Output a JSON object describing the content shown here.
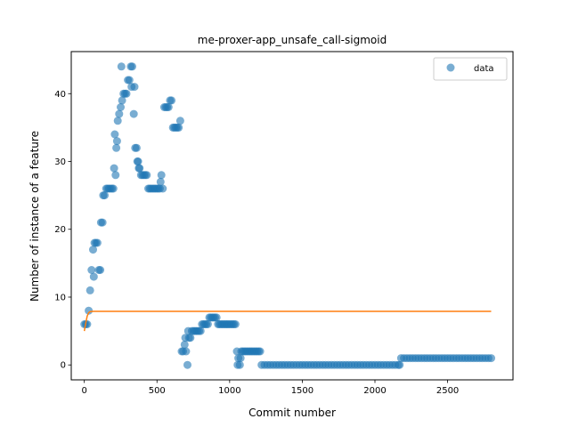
{
  "chart_data": {
    "type": "scatter",
    "title": "me-proxer-app_unsafe_call-sigmoid",
    "xlabel": "Commit number",
    "ylabel": "Number of instance of a feature",
    "xlim": [
      -90,
      2950
    ],
    "ylim": [
      -2.2,
      46.2
    ],
    "x_ticks": [
      0,
      500,
      1000,
      1500,
      2000,
      2500
    ],
    "y_ticks": [
      0,
      10,
      20,
      30,
      40
    ],
    "legend": {
      "position": "top-right",
      "entries": [
        "data"
      ]
    },
    "colors": {
      "data": "#1f77b4",
      "fit": "#ff7f0e"
    },
    "series": [
      {
        "name": "data",
        "kind": "scatter",
        "points": [
          [
            0,
            6
          ],
          [
            10,
            6
          ],
          [
            20,
            6
          ],
          [
            30,
            8
          ],
          [
            40,
            11
          ],
          [
            50,
            14
          ],
          [
            60,
            17
          ],
          [
            65,
            13
          ],
          [
            70,
            18
          ],
          [
            80,
            18
          ],
          [
            90,
            18
          ],
          [
            100,
            14
          ],
          [
            110,
            14
          ],
          [
            115,
            21
          ],
          [
            125,
            21
          ],
          [
            130,
            25
          ],
          [
            140,
            25
          ],
          [
            150,
            26
          ],
          [
            160,
            26
          ],
          [
            170,
            26
          ],
          [
            180,
            26
          ],
          [
            190,
            26
          ],
          [
            200,
            26
          ],
          [
            205,
            29
          ],
          [
            210,
            34
          ],
          [
            215,
            28
          ],
          [
            220,
            32
          ],
          [
            225,
            33
          ],
          [
            230,
            36
          ],
          [
            240,
            37
          ],
          [
            250,
            38
          ],
          [
            255,
            44
          ],
          [
            260,
            39
          ],
          [
            270,
            40
          ],
          [
            280,
            40
          ],
          [
            290,
            40
          ],
          [
            300,
            42
          ],
          [
            310,
            42
          ],
          [
            320,
            44
          ],
          [
            325,
            41
          ],
          [
            330,
            44
          ],
          [
            340,
            37
          ],
          [
            345,
            41
          ],
          [
            350,
            32
          ],
          [
            360,
            32
          ],
          [
            365,
            30
          ],
          [
            370,
            30
          ],
          [
            375,
            29
          ],
          [
            380,
            29
          ],
          [
            390,
            28
          ],
          [
            400,
            28
          ],
          [
            410,
            28
          ],
          [
            420,
            28
          ],
          [
            430,
            28
          ],
          [
            440,
            26
          ],
          [
            450,
            26
          ],
          [
            460,
            26
          ],
          [
            470,
            26
          ],
          [
            480,
            26
          ],
          [
            490,
            26
          ],
          [
            500,
            26
          ],
          [
            510,
            26
          ],
          [
            520,
            26
          ],
          [
            525,
            27
          ],
          [
            530,
            28
          ],
          [
            540,
            26
          ],
          [
            550,
            38
          ],
          [
            560,
            38
          ],
          [
            570,
            38
          ],
          [
            580,
            38
          ],
          [
            590,
            39
          ],
          [
            600,
            39
          ],
          [
            610,
            35
          ],
          [
            620,
            35
          ],
          [
            630,
            35
          ],
          [
            640,
            35
          ],
          [
            650,
            35
          ],
          [
            660,
            36
          ],
          [
            670,
            2
          ],
          [
            680,
            2
          ],
          [
            690,
            3
          ],
          [
            695,
            4
          ],
          [
            700,
            2
          ],
          [
            710,
            0
          ],
          [
            715,
            5
          ],
          [
            720,
            4
          ],
          [
            730,
            4
          ],
          [
            740,
            5
          ],
          [
            750,
            5
          ],
          [
            760,
            5
          ],
          [
            770,
            5
          ],
          [
            780,
            5
          ],
          [
            790,
            5
          ],
          [
            800,
            5
          ],
          [
            810,
            6
          ],
          [
            820,
            6
          ],
          [
            830,
            6
          ],
          [
            840,
            6
          ],
          [
            850,
            6
          ],
          [
            860,
            7
          ],
          [
            870,
            7
          ],
          [
            880,
            7
          ],
          [
            890,
            7
          ],
          [
            900,
            7
          ],
          [
            910,
            7
          ],
          [
            920,
            6
          ],
          [
            930,
            6
          ],
          [
            940,
            6
          ],
          [
            950,
            6
          ],
          [
            960,
            6
          ],
          [
            970,
            6
          ],
          [
            980,
            6
          ],
          [
            990,
            6
          ],
          [
            1000,
            6
          ],
          [
            1010,
            6
          ],
          [
            1020,
            6
          ],
          [
            1030,
            6
          ],
          [
            1040,
            6
          ],
          [
            1050,
            2
          ],
          [
            1055,
            0
          ],
          [
            1060,
            1
          ],
          [
            1070,
            0
          ],
          [
            1075,
            1
          ],
          [
            1080,
            2
          ],
          [
            1090,
            2
          ],
          [
            1100,
            2
          ],
          [
            1110,
            2
          ],
          [
            1120,
            2
          ],
          [
            1130,
            2
          ],
          [
            1140,
            2
          ],
          [
            1150,
            2
          ],
          [
            1160,
            2
          ],
          [
            1170,
            2
          ],
          [
            1180,
            2
          ],
          [
            1190,
            2
          ],
          [
            1200,
            2
          ],
          [
            1210,
            2
          ],
          [
            1220,
            0
          ],
          [
            1240,
            0
          ],
          [
            1260,
            0
          ],
          [
            1280,
            0
          ],
          [
            1300,
            0
          ],
          [
            1320,
            0
          ],
          [
            1340,
            0
          ],
          [
            1360,
            0
          ],
          [
            1380,
            0
          ],
          [
            1400,
            0
          ],
          [
            1420,
            0
          ],
          [
            1440,
            0
          ],
          [
            1460,
            0
          ],
          [
            1480,
            0
          ],
          [
            1500,
            0
          ],
          [
            1520,
            0
          ],
          [
            1540,
            0
          ],
          [
            1560,
            0
          ],
          [
            1580,
            0
          ],
          [
            1600,
            0
          ],
          [
            1620,
            0
          ],
          [
            1640,
            0
          ],
          [
            1660,
            0
          ],
          [
            1680,
            0
          ],
          [
            1700,
            0
          ],
          [
            1720,
            0
          ],
          [
            1740,
            0
          ],
          [
            1760,
            0
          ],
          [
            1780,
            0
          ],
          [
            1800,
            0
          ],
          [
            1820,
            0
          ],
          [
            1840,
            0
          ],
          [
            1860,
            0
          ],
          [
            1880,
            0
          ],
          [
            1900,
            0
          ],
          [
            1920,
            0
          ],
          [
            1940,
            0
          ],
          [
            1960,
            0
          ],
          [
            1980,
            0
          ],
          [
            2000,
            0
          ],
          [
            2020,
            0
          ],
          [
            2040,
            0
          ],
          [
            2060,
            0
          ],
          [
            2080,
            0
          ],
          [
            2100,
            0
          ],
          [
            2120,
            0
          ],
          [
            2140,
            0
          ],
          [
            2160,
            0
          ],
          [
            2170,
            0
          ],
          [
            2180,
            1
          ],
          [
            2200,
            1
          ],
          [
            2220,
            1
          ],
          [
            2240,
            1
          ],
          [
            2260,
            1
          ],
          [
            2280,
            1
          ],
          [
            2300,
            1
          ],
          [
            2320,
            1
          ],
          [
            2340,
            1
          ],
          [
            2360,
            1
          ],
          [
            2380,
            1
          ],
          [
            2400,
            1
          ],
          [
            2420,
            1
          ],
          [
            2440,
            1
          ],
          [
            2460,
            1
          ],
          [
            2480,
            1
          ],
          [
            2500,
            1
          ],
          [
            2520,
            1
          ],
          [
            2540,
            1
          ],
          [
            2560,
            1
          ],
          [
            2580,
            1
          ],
          [
            2600,
            1
          ],
          [
            2620,
            1
          ],
          [
            2640,
            1
          ],
          [
            2660,
            1
          ],
          [
            2680,
            1
          ],
          [
            2700,
            1
          ],
          [
            2720,
            1
          ],
          [
            2740,
            1
          ],
          [
            2760,
            1
          ],
          [
            2780,
            1
          ],
          [
            2800,
            1
          ]
        ]
      },
      {
        "kind": "line",
        "points": [
          [
            0,
            5
          ],
          [
            10,
            6.2
          ],
          [
            20,
            7.2
          ],
          [
            30,
            7.7
          ],
          [
            40,
            7.85
          ],
          [
            60,
            7.9
          ],
          [
            2800,
            7.9
          ]
        ]
      }
    ]
  }
}
